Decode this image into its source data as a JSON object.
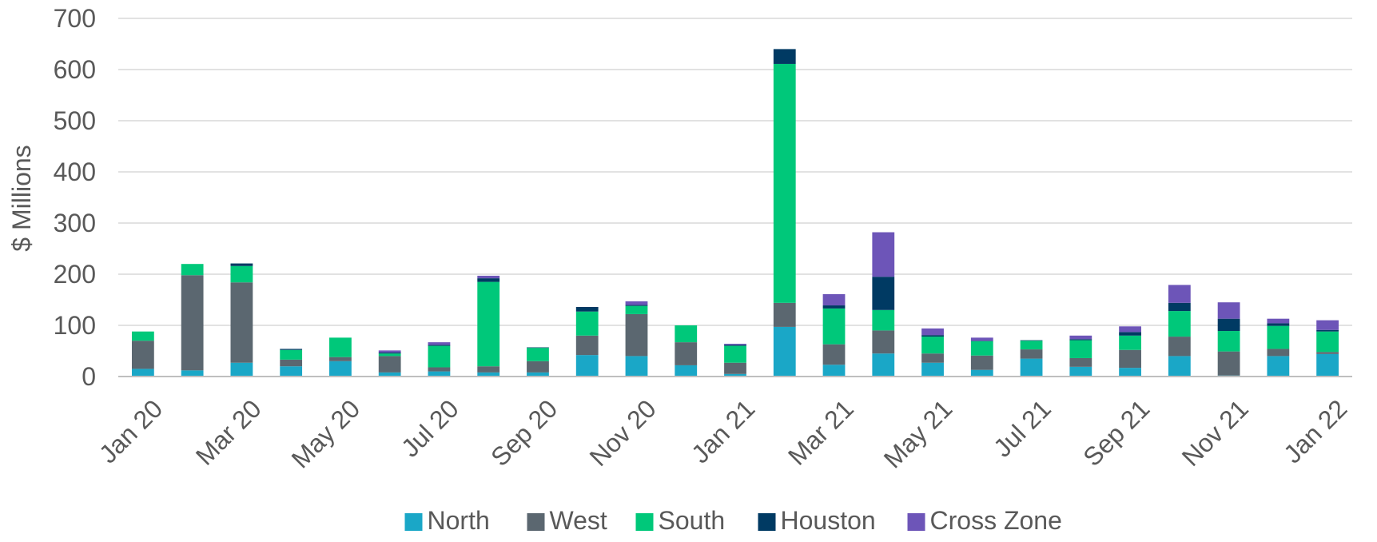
{
  "chart_data": {
    "type": "stacked_bar",
    "y_label": "$ Millions",
    "categories": [
      "Jan 20",
      null,
      "Mar 20",
      null,
      "May 20",
      null,
      "Jul 20",
      null,
      "Sep 20",
      null,
      "Nov 20",
      null,
      "Jan 21",
      null,
      "Mar 21",
      null,
      "May 21",
      null,
      "Jul 21",
      null,
      "Sep 21",
      null,
      "Nov 21",
      null,
      "Jan 22"
    ],
    "series": [
      {
        "name": "North",
        "color": "#1aa7c7",
        "values": [
          15,
          12,
          27,
          20,
          30,
          8,
          10,
          8,
          8,
          42,
          40,
          22,
          5,
          97,
          23,
          45,
          27,
          13,
          35,
          19,
          17,
          40,
          2,
          40,
          44
        ]
      },
      {
        "name": "West",
        "color": "#5b6770",
        "values": [
          55,
          186,
          157,
          13,
          8,
          32,
          8,
          12,
          22,
          38,
          82,
          45,
          22,
          47,
          40,
          45,
          18,
          28,
          18,
          17,
          35,
          38,
          47,
          14,
          4
        ]
      },
      {
        "name": "South",
        "color": "#00c87a",
        "values": [
          18,
          22,
          32,
          19,
          38,
          5,
          42,
          165,
          26,
          47,
          16,
          33,
          33,
          467,
          70,
          40,
          33,
          28,
          17,
          35,
          28,
          50,
          40,
          45,
          40
        ]
      },
      {
        "name": "Houston",
        "color": "#003a63",
        "values": [
          0,
          0,
          5,
          2,
          0,
          2,
          2,
          7,
          1,
          9,
          2,
          0,
          2,
          29,
          6,
          65,
          3,
          1,
          1,
          2,
          7,
          16,
          24,
          5,
          3
        ]
      },
      {
        "name": "Cross Zone",
        "color": "#6d55b8",
        "values": [
          0,
          0,
          0,
          0,
          0,
          4,
          5,
          5,
          0,
          0,
          7,
          0,
          2,
          0,
          22,
          87,
          13,
          6,
          0,
          7,
          11,
          35,
          32,
          9,
          19
        ]
      }
    ],
    "ylim": [
      0,
      700
    ],
    "yticks": [
      0,
      100,
      200,
      300,
      400,
      500,
      600,
      700
    ],
    "grid": true,
    "legend": "bottom"
  }
}
